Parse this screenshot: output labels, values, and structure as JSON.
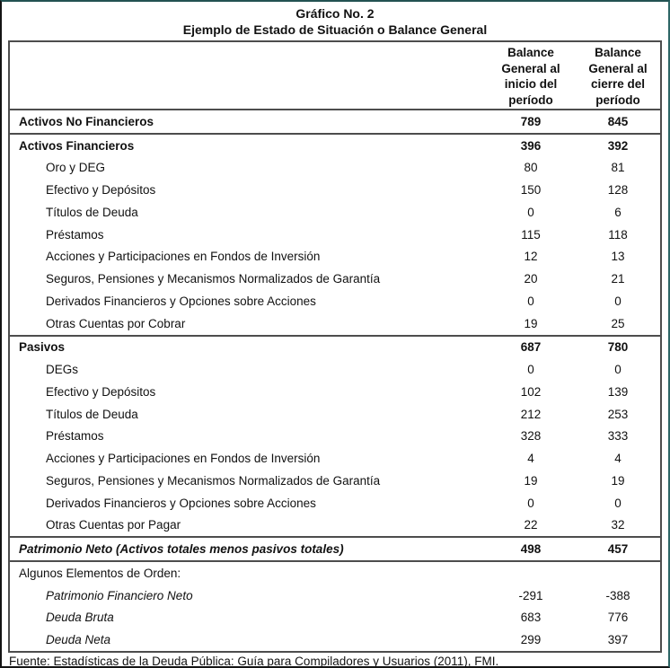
{
  "titles": {
    "line1": "Gráfico No. 2",
    "line2": "Ejemplo de Estado de Situación o Balance General"
  },
  "table": {
    "column_headers": [
      "Balance General al inicio del período",
      "Balance General al cierre del período"
    ],
    "sections": [
      {
        "name": "activos-no-financieros",
        "rows": [
          {
            "label": "Activos No Financieros",
            "style": "section",
            "underline": false,
            "v1": "789",
            "v2": "845"
          }
        ]
      },
      {
        "name": "activos-financieros",
        "rows": [
          {
            "label": "Activos Financieros",
            "style": "section",
            "underline": false,
            "v1": "396",
            "v2": "392"
          },
          {
            "label": "Oro y DEG",
            "style": "item",
            "underline": true,
            "v1": "80",
            "v2": "81"
          },
          {
            "label": "Efectivo y Depósitos",
            "style": "item",
            "underline": true,
            "v1": "150",
            "v2": "128"
          },
          {
            "label": "Títulos de Deuda",
            "style": "item",
            "underline": true,
            "v1": "0",
            "v2": "6"
          },
          {
            "label": "Préstamos",
            "style": "item",
            "underline": true,
            "v1": "115",
            "v2": "118"
          },
          {
            "label": "Acciones y Participaciones en Fondos de Inversión",
            "style": "item",
            "underline": false,
            "v1": "12",
            "v2": "13"
          },
          {
            "label": "Seguros, Pensiones y Mecanismos Normalizados de Garantía",
            "style": "item",
            "underline": true,
            "v1": "20",
            "v2": "21"
          },
          {
            "label": "Derivados Financieros y Opciones sobre Acciones",
            "style": "item",
            "underline": false,
            "v1": "0",
            "v2": "0"
          },
          {
            "label": "Otras Cuentas por Cobrar",
            "style": "item",
            "underline": true,
            "v1": "19",
            "v2": "25"
          }
        ]
      },
      {
        "name": "pasivos",
        "rows": [
          {
            "label": "Pasivos",
            "style": "section",
            "underline": false,
            "v1": "687",
            "v2": "780"
          },
          {
            "label": "DEGs",
            "style": "item",
            "underline": true,
            "v1": "0",
            "v2": "0"
          },
          {
            "label": "Efectivo y Depósitos",
            "style": "item",
            "underline": true,
            "v1": "102",
            "v2": "139"
          },
          {
            "label": "Títulos de Deuda",
            "style": "item",
            "underline": true,
            "v1": "212",
            "v2": "253"
          },
          {
            "label": "Préstamos",
            "style": "item",
            "underline": true,
            "v1": "328",
            "v2": "333"
          },
          {
            "label": "Acciones y Participaciones en Fondos de Inversión",
            "style": "item",
            "underline": false,
            "v1": "4",
            "v2": "4"
          },
          {
            "label": "Seguros, Pensiones y Mecanismos Normalizados de Garantía",
            "style": "item",
            "underline": true,
            "v1": "19",
            "v2": "19"
          },
          {
            "label": "Derivados Financieros y Opciones sobre Acciones",
            "style": "item",
            "underline": false,
            "v1": "0",
            "v2": "0"
          },
          {
            "label": "Otras Cuentas por Pagar",
            "style": "item",
            "underline": true,
            "v1": "22",
            "v2": "32"
          }
        ]
      },
      {
        "name": "patrimonio-neto",
        "rows": [
          {
            "label": "Patrimonio Neto (Activos totales menos pasivos totales)",
            "style": "total",
            "underline": false,
            "v1": "498",
            "v2": "457"
          }
        ]
      },
      {
        "name": "elementos-de-orden",
        "rows": [
          {
            "label": "Algunos Elementos de Orden:",
            "style": "memo-header",
            "underline": false,
            "v1": "",
            "v2": ""
          },
          {
            "label": "Patrimonio Financiero Neto",
            "style": "memo-item",
            "underline": false,
            "v1": "-291",
            "v2": "-388"
          },
          {
            "label": "Deuda Bruta",
            "style": "memo-item",
            "underline": false,
            "v1": "683",
            "v2": "776"
          },
          {
            "label": "Deuda Neta",
            "style": "memo-item",
            "underline": false,
            "v1": "299",
            "v2": "397"
          }
        ]
      }
    ]
  },
  "footer": {
    "source": "Fuente: Estadísticas de la Deuda Pública: Guía para Compiladores y Usuarios (2011), FMI."
  },
  "colors": {
    "table_border": "#4d4d4d",
    "text": "#111111",
    "underline": "#2e2e2e"
  }
}
